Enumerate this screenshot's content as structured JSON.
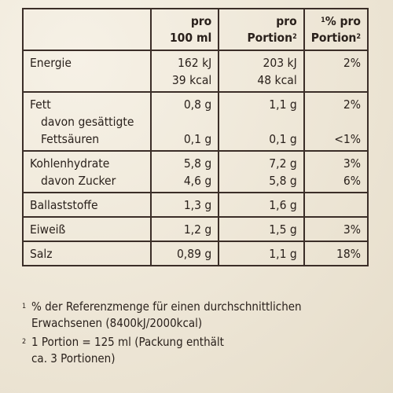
{
  "header": {
    "col1_line1": "pro",
    "col1_line2": "100 ml",
    "col2_line1": "pro",
    "col2_line2": "Portion",
    "col2_sup": "2",
    "col3_sup": "1",
    "col3_line1": "% pro",
    "col3_line2": "Portion",
    "col3_line2_sup": "2"
  },
  "rows": {
    "energie": {
      "label": "Energie",
      "per100_kj": "162 kJ",
      "per100_kcal": "39 kcal",
      "portion_kj": "203 kJ",
      "portion_kcal": "48 kcal",
      "pct": "2%"
    },
    "fett": {
      "label": "Fett",
      "per100": "0,8 g",
      "portion": "1,1 g",
      "pct": "2%",
      "sub_label_1": "davon gesättigte",
      "sub_label_2": "Fettsäuren",
      "sub_per100": "0,1 g",
      "sub_portion": "0,1 g",
      "sub_pct": "<1%"
    },
    "kohlenhydrate": {
      "label": "Kohlenhydrate",
      "per100": "5,8 g",
      "portion": "7,2 g",
      "pct": "3%",
      "sub_label": "davon Zucker",
      "sub_per100": "4,6 g",
      "sub_portion": "5,8 g",
      "sub_pct": "6%"
    },
    "ballaststoffe": {
      "label": "Ballaststoffe",
      "per100": "1,3 g",
      "portion": "1,6 g",
      "pct": ""
    },
    "eiweiss": {
      "label": "Eiweiß",
      "per100": "1,2 g",
      "portion": "1,5 g",
      "pct": "3%"
    },
    "salz": {
      "label": "Salz",
      "per100": "0,89 g",
      "portion": "1,1 g",
      "pct": "18%"
    }
  },
  "footnotes": {
    "note1_mark": "1",
    "note1_line1": "% der Referenzmenge für einen durchschnittlichen",
    "note1_line2": "Erwachsenen (8400kJ/2000kcal)",
    "note2_mark": "2",
    "note2_line1": "1 Portion = 125 ml (Packung enthält",
    "note2_line2": "ca. 3 Portionen)"
  }
}
